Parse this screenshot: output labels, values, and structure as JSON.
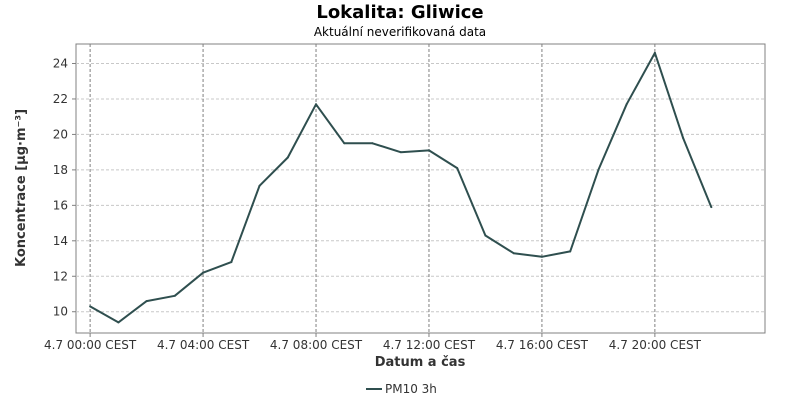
{
  "chart_data": {
    "type": "line",
    "title": "Lokalita: Gliwice",
    "subtitle": "Aktuální neverifikovaná data",
    "xlabel": "Datum a čas",
    "ylabel": "Koncentrace [µg·m⁻³]",
    "x_ticks": [
      "4.7 00:00 CEST",
      "4.7 04:00 CEST",
      "4.7 08:00 CEST",
      "4.7 12:00 CEST",
      "4.7 16:00 CEST",
      "4.7 20:00 CEST"
    ],
    "x_tick_hours": [
      0,
      4,
      8,
      12,
      16,
      20
    ],
    "xlim_hours": [
      -0.5,
      23.9
    ],
    "y_ticks": [
      10,
      12,
      14,
      16,
      18,
      20,
      22,
      24
    ],
    "ylim": [
      8.8,
      25.1
    ],
    "grid": true,
    "legend_position": "bottom-center",
    "series": [
      {
        "name": "PM10 3h",
        "color": "#2f4f4f",
        "x_hours": [
          0,
          1,
          2,
          3,
          4,
          5,
          6,
          7,
          8,
          9,
          10,
          11,
          12,
          13,
          14,
          15,
          16,
          17,
          18,
          19,
          20,
          21,
          22
        ],
        "values": [
          10.3,
          9.4,
          10.6,
          10.9,
          12.2,
          12.8,
          17.1,
          18.7,
          21.7,
          19.5,
          19.5,
          19.0,
          19.1,
          18.1,
          14.3,
          13.3,
          13.1,
          13.4,
          18.0,
          21.7,
          24.6,
          19.8,
          15.9
        ]
      }
    ]
  }
}
